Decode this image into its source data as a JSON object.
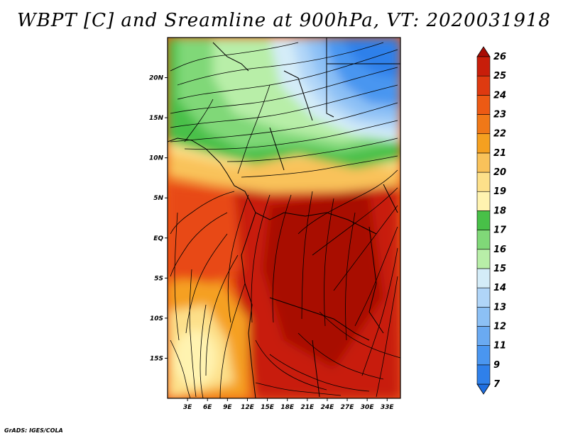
{
  "title": "WBPT [C] and Sreamline at 900hPa, VT: 2020031918",
  "credit": "GrADS: IGES/COLA",
  "map": {
    "lon_labels": [
      "3E",
      "6E",
      "9E",
      "12E",
      "15E",
      "18E",
      "21E",
      "24E",
      "27E",
      "30E",
      "33E"
    ],
    "lat_labels": [
      "20N",
      "15N",
      "10N",
      "5N",
      "EQ",
      "5S",
      "10S",
      "15S"
    ],
    "lon_range": [
      0,
      35
    ],
    "lat_range": [
      -20,
      25
    ]
  },
  "colorbar": {
    "labels": [
      "7",
      "9",
      "11",
      "12",
      "13",
      "14",
      "15",
      "16",
      "17",
      "18",
      "19",
      "20",
      "21",
      "22",
      "23",
      "24",
      "25",
      "26"
    ],
    "colors": [
      "#1e6ee0",
      "#2f80ea",
      "#4a96f0",
      "#6aaaf2",
      "#8cc0f5",
      "#b0d5f8",
      "#d4ecf8",
      "#b8eea8",
      "#80d878",
      "#48c048",
      "#fff3b0",
      "#fde08a",
      "#f9c25a",
      "#f5a020",
      "#f07818",
      "#ec5a14",
      "#de3a10",
      "#c81e0a",
      "#a80c04"
    ]
  }
}
